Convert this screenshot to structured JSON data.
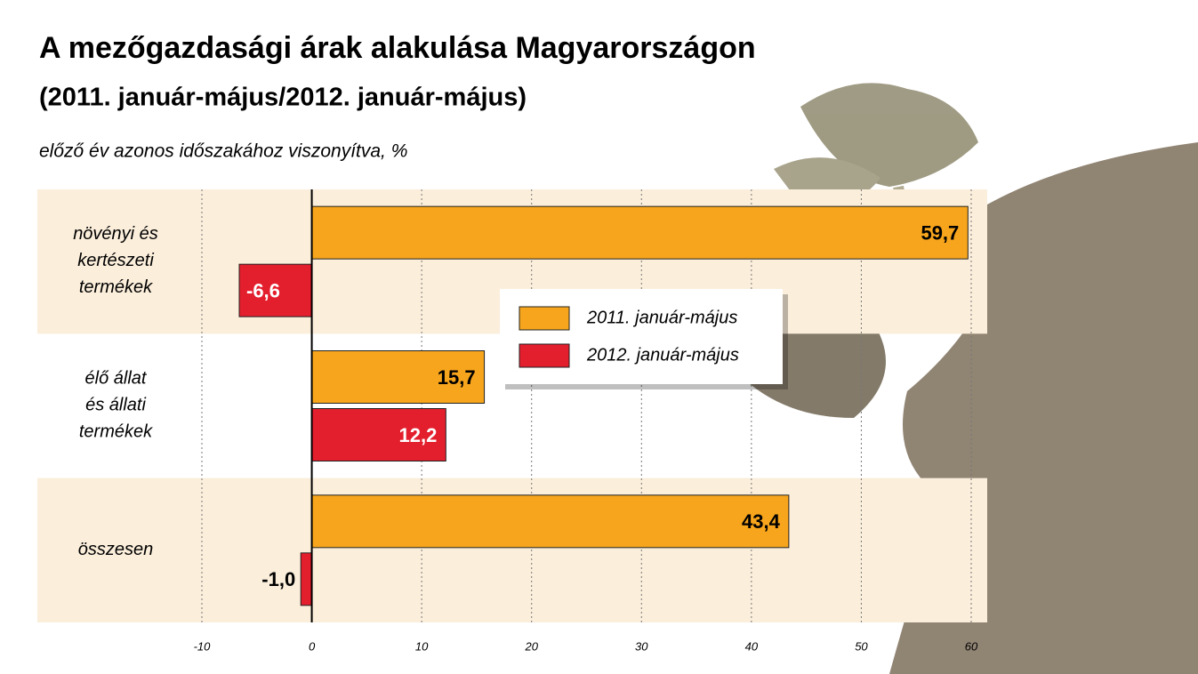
{
  "chart_data": {
    "type": "bar",
    "orientation": "horizontal",
    "title": "A mezőgazdasági árak alakulása Magyarországon",
    "subtitle": "(2011. január-május/2012. január-május)",
    "axis_note": "előző év azonos időszakához viszonyítva, %",
    "categories": [
      "növényi és\nkertészeti\ntermékek",
      "élő állat\nés állati\ntermékek",
      "összesen"
    ],
    "series": [
      {
        "name": "2011. január-május",
        "color": "#f7a51c",
        "values": [
          59.7,
          15.7,
          43.4
        ],
        "value_labels": [
          "59,7",
          "15,7",
          "43,4"
        ]
      },
      {
        "name": "2012. január-május",
        "color": "#e31e2d",
        "values": [
          -6.6,
          12.2,
          -1.0
        ],
        "value_labels": [
          "-6,6",
          "12,2",
          "-1,0"
        ]
      }
    ],
    "xlim": [
      -10,
      60
    ],
    "xticks": [
      -10,
      0,
      10,
      20,
      30,
      40,
      50,
      60
    ],
    "grid": true
  }
}
